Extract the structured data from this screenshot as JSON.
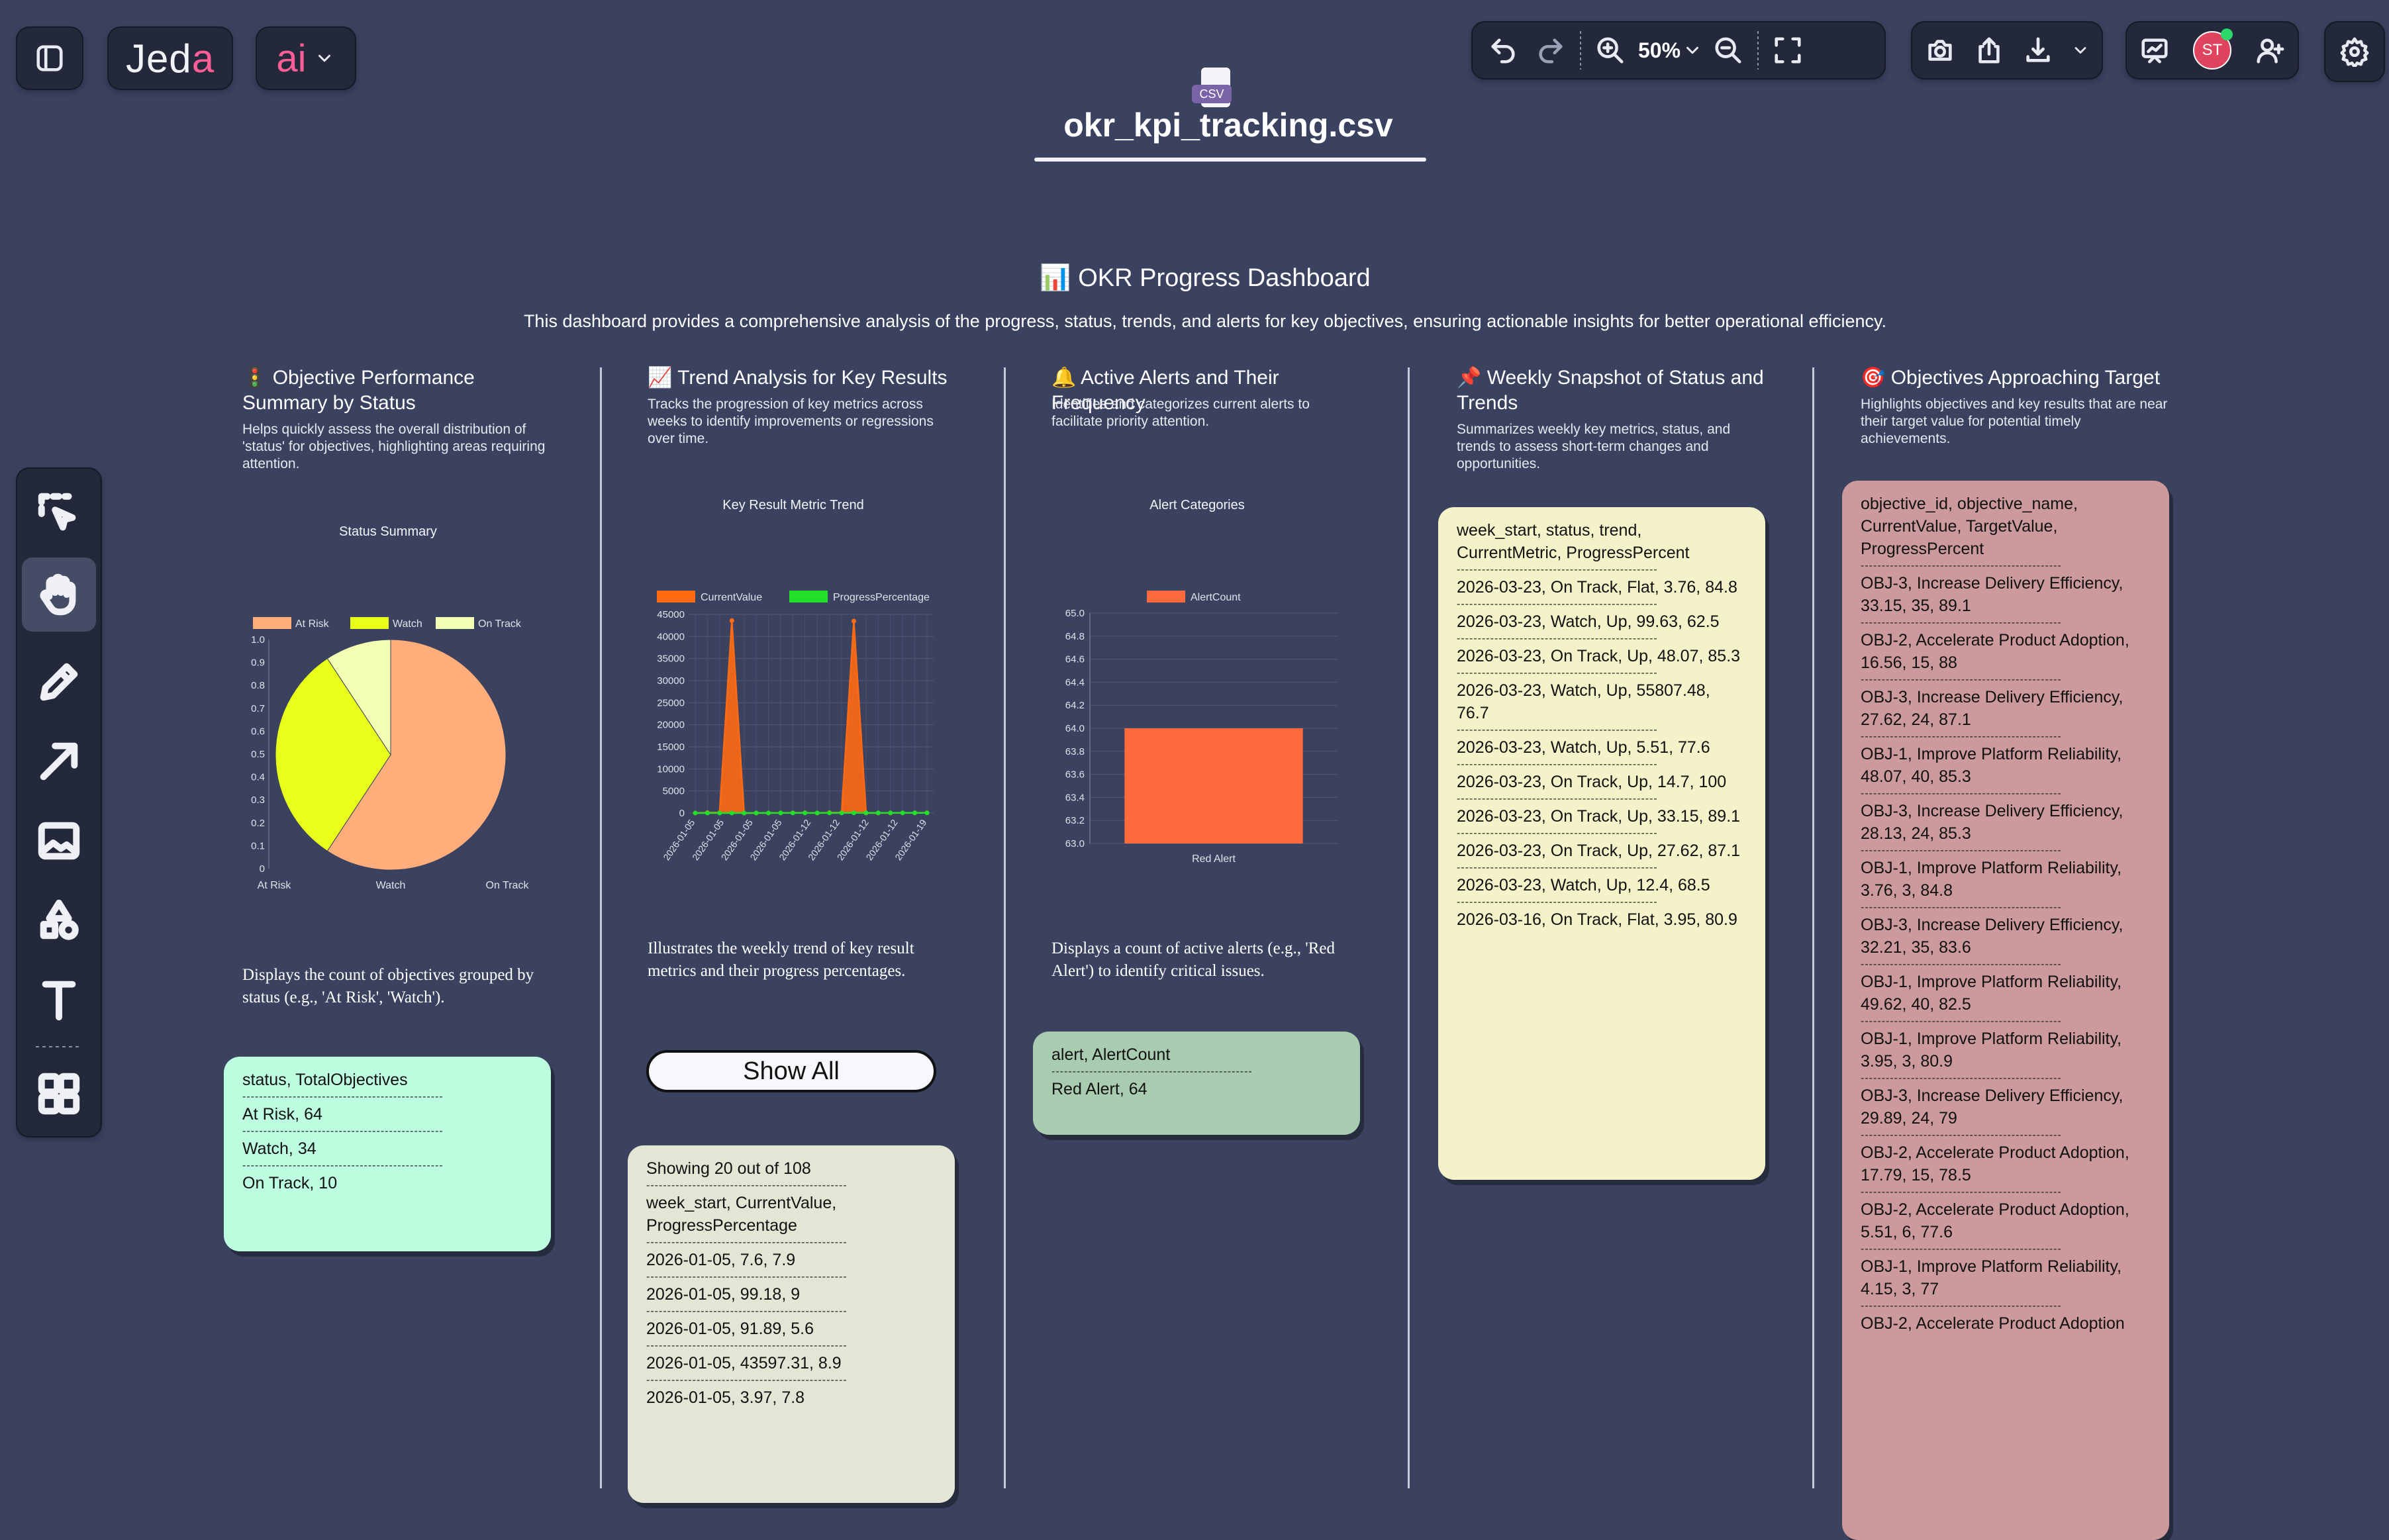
{
  "app": {
    "logo": "Jeda",
    "ai_label": "ai",
    "zoom": "50%",
    "avatar_initials": "ST",
    "file_badge": "CSV",
    "file_name": "okr_kpi_tracking.csv"
  },
  "dashboard": {
    "title": "📊 OKR Progress Dashboard",
    "description": "This dashboard provides a comprehensive analysis of the progress, status, trends, and alerts for key objectives, ensuring actionable insights for better operational efficiency."
  },
  "columns": [
    {
      "title": "🚦 Objective Performance Summary by Status",
      "description": "Helps quickly assess the overall distribution of 'status' for objectives, highlighting areas requiring attention.",
      "chart_title": "Status Summary",
      "caption": "Displays the count of objectives grouped by status (e.g., 'At Risk', 'Watch')."
    },
    {
      "title": "📈 Trend Analysis for Key Results",
      "description": "Tracks the progression of key metrics across weeks to identify improvements or regressions over time.",
      "chart_title": "Key Result Metric Trend",
      "caption": "Illustrates the weekly trend of key result metrics and their progress percentages.",
      "button": "Show All"
    },
    {
      "title": "🔔 Active Alerts and Their Frequency",
      "description": "Identifies and categorizes current alerts to facilitate priority attention.",
      "chart_title": "Alert Categories",
      "caption": "Displays a count of active alerts (e.g., 'Red Alert') to identify critical issues."
    },
    {
      "title": "📌 Weekly Snapshot of Status and Trends",
      "description": "Summarizes weekly key metrics, status, and trends to assess short-term changes and opportunities."
    },
    {
      "title": "🎯 Objectives Approaching Target",
      "description": "Highlights objectives and key results that are near their target value for potential timely achievements."
    }
  ],
  "cards": {
    "status": {
      "header": "status, TotalObjectives",
      "rows": [
        "At Risk, 64",
        "Watch, 34",
        "On Track, 10"
      ]
    },
    "trend": {
      "showing": "Showing 20 out of 108",
      "header": "week_start, CurrentValue, ProgressPercentage",
      "rows": [
        "2026-01-05, 7.6, 7.9",
        "2026-01-05, 99.18, 9",
        "2026-01-05, 91.89, 5.6",
        "2026-01-05, 43597.31, 8.9",
        "2026-01-05, 3.97, 7.8"
      ]
    },
    "alerts": {
      "header": "alert, AlertCount",
      "rows": [
        "Red Alert, 64"
      ]
    },
    "weekly": {
      "header": "week_start, status, trend, CurrentMetric, ProgressPercent",
      "rows": [
        "2026-03-23, On Track, Flat, 3.76, 84.8",
        "2026-03-23, Watch, Up, 99.63, 62.5",
        "2026-03-23, On Track, Up, 48.07, 85.3",
        "2026-03-23, Watch, Up, 55807.48, 76.7",
        "2026-03-23, Watch, Up, 5.51, 77.6",
        "2026-03-23, On Track, Up, 14.7, 100",
        "2026-03-23, On Track, Up, 33.15, 89.1",
        "2026-03-23, On Track, Up, 27.62, 87.1",
        "2026-03-23, Watch, Up, 12.4, 68.5",
        "2026-03-16, On Track, Flat, 3.95, 80.9"
      ]
    },
    "targets": {
      "header": "objective_id, objective_name, CurrentValue, TargetValue, ProgressPercent",
      "rows": [
        "OBJ-3, Increase Delivery Efficiency, 33.15, 35, 89.1",
        "OBJ-2, Accelerate Product Adoption, 16.56, 15, 88",
        "OBJ-3, Increase Delivery Efficiency, 27.62, 24, 87.1",
        "OBJ-1, Improve Platform Reliability, 48.07, 40, 85.3",
        "OBJ-3, Increase Delivery Efficiency, 28.13, 24, 85.3",
        "OBJ-1, Improve Platform Reliability, 3.76, 3, 84.8",
        "OBJ-3, Increase Delivery Efficiency, 32.21, 35, 83.6",
        "OBJ-1, Improve Platform Reliability, 49.62, 40, 82.5",
        "OBJ-1, Improve Platform Reliability, 3.95, 3, 80.9",
        "OBJ-3, Increase Delivery Efficiency, 29.89, 24, 79",
        "OBJ-2, Accelerate Product Adoption, 17.79, 15, 78.5",
        "OBJ-2, Accelerate Product Adoption, 5.51, 6, 77.6",
        "OBJ-1, Improve Platform Reliability, 4.15, 3, 77",
        "OBJ-2, Accelerate Product Adoption"
      ]
    }
  },
  "colors": {
    "background": "#3b4260",
    "status_card": "#bdfde0",
    "trend_card": "#e4e6d5",
    "alerts_card": "#a9cbb0",
    "weekly_card": "#f4f2c8",
    "targets_card": "#cc9a9c"
  },
  "chart_data": [
    {
      "type": "pie",
      "title": "Status Summary",
      "categories": [
        "At Risk",
        "Watch",
        "On Track"
      ],
      "values": [
        64,
        34,
        10
      ],
      "colors": [
        "#ffad7a",
        "#e8ff1a",
        "#f3ffb2"
      ],
      "legend": "top",
      "y_ticks": [
        "0",
        "0.1",
        "0.2",
        "0.3",
        "0.4",
        "0.5",
        "0.6",
        "0.7",
        "0.8",
        "0.9",
        "1.0"
      ]
    },
    {
      "type": "line",
      "title": "Key Result Metric Trend",
      "legend": "top",
      "x": [
        "2026-01-05",
        "2026-01-05",
        "2026-01-05",
        "2026-01-05",
        "2026-01-05",
        "2026-01-05",
        "2026-01-05",
        "2026-01-05",
        "2026-01-05",
        "2026-01-05",
        "2026-01-12",
        "2026-01-12",
        "2026-01-12",
        "2026-01-12",
        "2026-01-12",
        "2026-01-12",
        "2026-01-12",
        "2026-01-12",
        "2026-01-12",
        "2026-01-12"
      ],
      "x_ticks": [
        "2026-01-05",
        "2026-01-05",
        "2026-01-05",
        "2026-01-05",
        "2026-01-12",
        "2026-01-12",
        "2026-01-12",
        "2026-01-12",
        "2026-01-19"
      ],
      "ylim": [
        0,
        45000
      ],
      "y_ticks": [
        0,
        5000,
        10000,
        15000,
        20000,
        25000,
        30000,
        35000,
        40000,
        45000
      ],
      "series": [
        {
          "name": "CurrentValue",
          "color": "#ff6a13",
          "values": [
            7.6,
            99.18,
            91.89,
            43597.31,
            3.97,
            5,
            12,
            30,
            45,
            60,
            8,
            95,
            88,
            43500,
            4,
            6,
            14,
            28,
            40,
            55
          ]
        },
        {
          "name": "ProgressPercentage",
          "color": "#20e02a",
          "values": [
            7.9,
            9,
            5.6,
            8.9,
            7.8,
            10,
            12,
            15,
            18,
            20,
            22,
            25,
            28,
            30,
            33,
            35,
            38,
            40,
            42,
            45
          ]
        }
      ]
    },
    {
      "type": "bar",
      "title": "Alert Categories",
      "legend": "top",
      "categories": [
        "Red Alert"
      ],
      "series": [
        {
          "name": "AlertCount",
          "color": "#ff6a3d",
          "values": [
            64
          ]
        }
      ],
      "ylim": [
        63.0,
        65.0
      ],
      "y_ticks": [
        "63.0",
        "63.2",
        "63.4",
        "63.6",
        "63.8",
        "64.0",
        "64.2",
        "64.4",
        "64.6",
        "64.8",
        "65.0"
      ]
    }
  ]
}
